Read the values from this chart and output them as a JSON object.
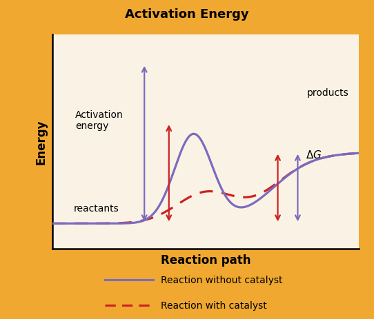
{
  "title": "Activation Energy",
  "title_fontsize": 13,
  "title_bg_color": "#F0A830",
  "plot_bg_color": "#FAF3E5",
  "outer_bg_color": "#F0A830",
  "xlabel": "Reaction path",
  "ylabel": "Energy",
  "label_fontsize": 12,
  "without_catalyst_color": "#7B6BBF",
  "with_catalyst_color": "#CC2222",
  "legend_label_without": "Reaction without catalyst",
  "legend_label_with": "Reaction with catalyst",
  "reactant_level": 0.12,
  "product_level": 0.46,
  "peak_without": 0.88,
  "peak_with": 0.6,
  "annot_fontsize": 10
}
